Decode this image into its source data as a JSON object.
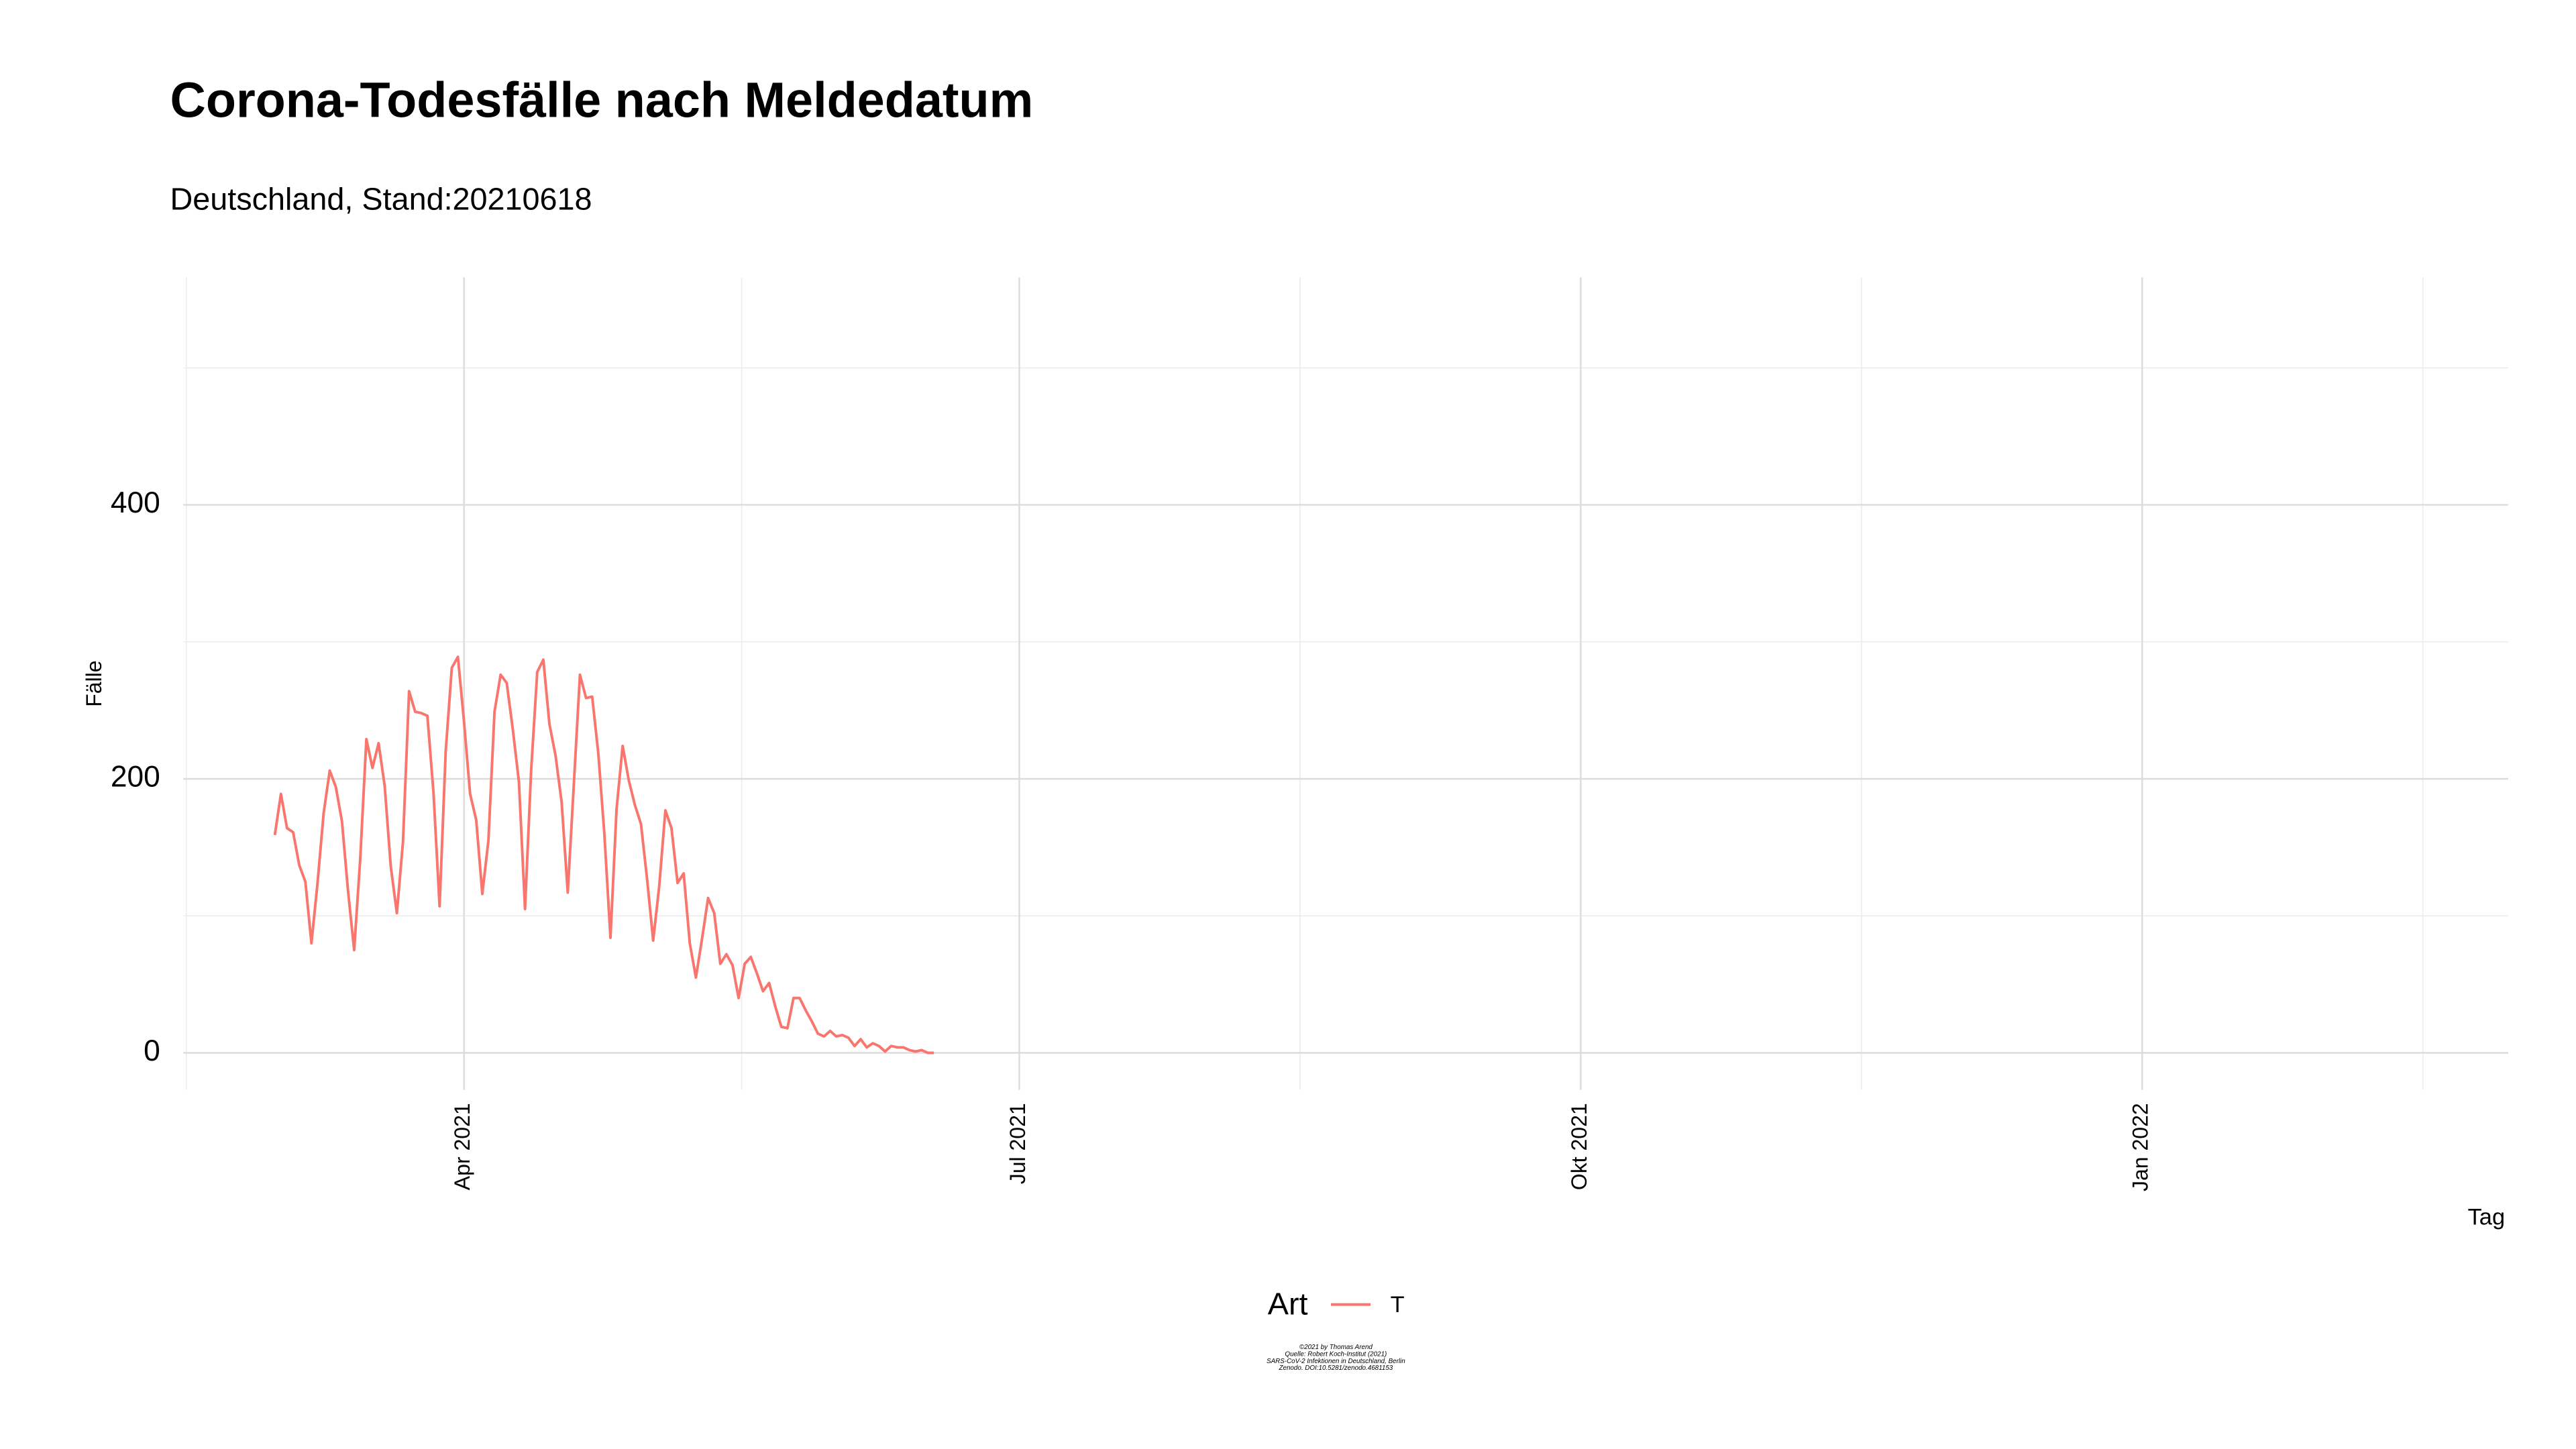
{
  "chart_data": {
    "type": "line",
    "title": "Corona-Todesfälle nach Meldedatum",
    "subtitle": "Deutschland, Stand:20210618",
    "x_label": "Tag",
    "y_label": "Fälle",
    "legend_title": "Art",
    "legend_position": "bottom",
    "caption": [
      "©2021 by Thomas Arend",
      "Quelle: Robert Koch-Institut (2021)",
      "SARS-CoV-2 Infektionen in Deutschland, Berlin",
      "Zenodo. DOI:10.5281/zenodo.4681153"
    ],
    "grid": true,
    "xlim": [
      "2021-02-14",
      "2022-03-02"
    ],
    "xticks": [
      {
        "value": "2021-04-01",
        "label": "Apr 2021"
      },
      {
        "value": "2021-07-01",
        "label": "Jul 2021"
      },
      {
        "value": "2021-10-01",
        "label": "Okt 2021"
      },
      {
        "value": "2022-01-01",
        "label": "Jan 2022"
      }
    ],
    "ylim": [
      -27,
      566
    ],
    "yticks": [
      0,
      200,
      400
    ],
    "y_minor_ticks": [
      100,
      300,
      500
    ],
    "x": [
      "2021-03-01",
      "2021-03-02",
      "2021-03-03",
      "2021-03-04",
      "2021-03-05",
      "2021-03-06",
      "2021-03-07",
      "2021-03-08",
      "2021-03-09",
      "2021-03-10",
      "2021-03-11",
      "2021-03-12",
      "2021-03-13",
      "2021-03-14",
      "2021-03-15",
      "2021-03-16",
      "2021-03-17",
      "2021-03-18",
      "2021-03-19",
      "2021-03-20",
      "2021-03-21",
      "2021-03-22",
      "2021-03-23",
      "2021-03-24",
      "2021-03-25",
      "2021-03-26",
      "2021-03-27",
      "2021-03-28",
      "2021-03-29",
      "2021-03-30",
      "2021-03-31",
      "2021-04-01",
      "2021-04-02",
      "2021-04-03",
      "2021-04-04",
      "2021-04-05",
      "2021-04-06",
      "2021-04-07",
      "2021-04-08",
      "2021-04-09",
      "2021-04-10",
      "2021-04-11",
      "2021-04-12",
      "2021-04-13",
      "2021-04-14",
      "2021-04-15",
      "2021-04-16",
      "2021-04-17",
      "2021-04-18",
      "2021-04-19",
      "2021-04-20",
      "2021-04-21",
      "2021-04-22",
      "2021-04-23",
      "2021-04-24",
      "2021-04-25",
      "2021-04-26",
      "2021-04-27",
      "2021-04-28",
      "2021-04-29",
      "2021-04-30",
      "2021-05-01",
      "2021-05-02",
      "2021-05-03",
      "2021-05-04",
      "2021-05-05",
      "2021-05-06",
      "2021-05-07",
      "2021-05-08",
      "2021-05-09",
      "2021-05-10",
      "2021-05-11",
      "2021-05-12",
      "2021-05-13",
      "2021-05-14",
      "2021-05-15",
      "2021-05-16",
      "2021-05-17",
      "2021-05-18",
      "2021-05-19",
      "2021-05-20",
      "2021-05-21",
      "2021-05-22",
      "2021-05-23",
      "2021-05-24",
      "2021-05-25",
      "2021-05-26",
      "2021-05-27",
      "2021-05-28",
      "2021-05-29",
      "2021-05-30",
      "2021-05-31",
      "2021-06-01",
      "2021-06-02",
      "2021-06-03",
      "2021-06-04",
      "2021-06-05",
      "2021-06-06",
      "2021-06-07",
      "2021-06-08",
      "2021-06-09",
      "2021-06-10",
      "2021-06-11",
      "2021-06-12",
      "2021-06-13",
      "2021-06-14",
      "2021-06-15",
      "2021-06-16",
      "2021-06-17"
    ],
    "series": [
      {
        "name": "T",
        "color": "#f8766d",
        "values": [
          159,
          189,
          164,
          161,
          137,
          125,
          80,
          124,
          175,
          206,
          194,
          169,
          118,
          75,
          142,
          229,
          208,
          226,
          195,
          136,
          102,
          154,
          264,
          249,
          248,
          246,
          190,
          107,
          220,
          281,
          289,
          242,
          189,
          170,
          116,
          155,
          249,
          276,
          270,
          236,
          198,
          105,
          206,
          278,
          287,
          240,
          217,
          183,
          117,
          196,
          276,
          259,
          260,
          219,
          160,
          84,
          178,
          224,
          199,
          181,
          167,
          127,
          82,
          122,
          177,
          164,
          124,
          131,
          80,
          55,
          83,
          113,
          102,
          65,
          72,
          64,
          40,
          65,
          70,
          58,
          45,
          51,
          34,
          19,
          18,
          40,
          40,
          31,
          23,
          14,
          12,
          16,
          12,
          13,
          11,
          5,
          10,
          4,
          7,
          5,
          1,
          5,
          4,
          4,
          2,
          1,
          2,
          0,
          0
        ]
      }
    ]
  }
}
